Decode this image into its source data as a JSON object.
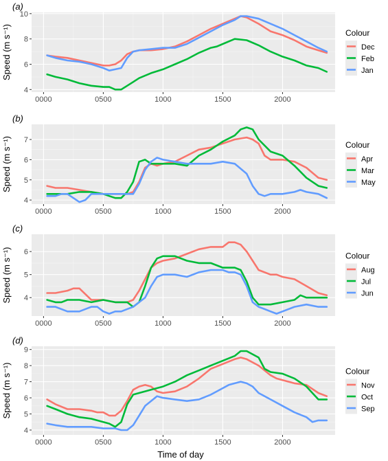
{
  "xlabel": "Time of day",
  "chart_data": [
    {
      "type": "line",
      "panel_label": "(a)",
      "ylabel": "Speed (m s⁻¹)",
      "xlim": [
        -100,
        2440
      ],
      "ylim": [
        3.8,
        10.1
      ],
      "xticks": [
        0,
        500,
        1000,
        1500,
        2000
      ],
      "xtick_labels": [
        "0000",
        "0500",
        "1000",
        "1500",
        "2000"
      ],
      "yticks": [
        4,
        6,
        8,
        10
      ],
      "ytick_labels": [
        "4",
        "6",
        "8",
        "10"
      ],
      "grid": true,
      "legend_title": "Colour",
      "legend_position": "right",
      "series": [
        {
          "name": "Dec",
          "color": "#F8766D",
          "x": [
            30,
            100,
            200,
            300,
            400,
            450,
            500,
            550,
            600,
            650,
            700,
            750,
            800,
            900,
            1000,
            1100,
            1200,
            1300,
            1400,
            1500,
            1600,
            1650,
            1700,
            1800,
            1900,
            2000,
            2100,
            2200,
            2300,
            2370
          ],
          "y": [
            6.7,
            6.6,
            6.5,
            6.3,
            6.1,
            6.0,
            5.9,
            5.9,
            6.0,
            6.3,
            6.8,
            7.0,
            7.1,
            7.1,
            7.2,
            7.4,
            7.8,
            8.3,
            8.8,
            9.2,
            9.6,
            9.8,
            9.7,
            9.2,
            8.6,
            8.3,
            7.9,
            7.4,
            7.1,
            6.9
          ]
        },
        {
          "name": "Feb",
          "color": "#00BA38",
          "x": [
            30,
            100,
            200,
            300,
            400,
            500,
            550,
            600,
            650,
            700,
            750,
            800,
            900,
            1000,
            1100,
            1200,
            1300,
            1400,
            1450,
            1500,
            1600,
            1700,
            1800,
            1900,
            2000,
            2100,
            2200,
            2300,
            2370
          ],
          "y": [
            5.2,
            5.0,
            4.8,
            4.5,
            4.3,
            4.2,
            4.2,
            4.0,
            4.0,
            4.3,
            4.6,
            4.9,
            5.3,
            5.6,
            6.0,
            6.4,
            6.9,
            7.3,
            7.4,
            7.6,
            8.0,
            7.9,
            7.5,
            7.0,
            6.6,
            6.3,
            5.9,
            5.7,
            5.4
          ]
        },
        {
          "name": "Jan",
          "color": "#619CFF",
          "x": [
            30,
            100,
            200,
            300,
            400,
            500,
            550,
            600,
            650,
            700,
            750,
            800,
            900,
            1000,
            1100,
            1200,
            1300,
            1400,
            1500,
            1600,
            1650,
            1700,
            1800,
            1900,
            2000,
            2100,
            2200,
            2300,
            2370
          ],
          "y": [
            6.7,
            6.5,
            6.3,
            6.2,
            6.0,
            5.7,
            5.5,
            5.6,
            5.7,
            6.5,
            7.0,
            7.1,
            7.2,
            7.3,
            7.3,
            7.6,
            8.1,
            8.6,
            9.1,
            9.5,
            9.8,
            9.8,
            9.6,
            9.2,
            8.8,
            8.3,
            7.8,
            7.3,
            7.0
          ]
        }
      ]
    },
    {
      "type": "line",
      "panel_label": "(b)",
      "ylabel": "Speed (m s⁻¹)",
      "xlim": [
        -100,
        2440
      ],
      "ylim": [
        3.8,
        7.75
      ],
      "xticks": [
        0,
        500,
        1000,
        1500,
        2000
      ],
      "xtick_labels": [
        "0000",
        "0500",
        "1000",
        "1500",
        "2000"
      ],
      "yticks": [
        4,
        5,
        6,
        7
      ],
      "ytick_labels": [
        "4",
        "5",
        "6",
        "7"
      ],
      "grid": true,
      "legend_title": "Colour",
      "legend_position": "right",
      "series": [
        {
          "name": "Apr",
          "color": "#F8766D",
          "x": [
            30,
            100,
            200,
            300,
            400,
            500,
            600,
            700,
            750,
            800,
            850,
            900,
            950,
            1000,
            1100,
            1200,
            1300,
            1400,
            1500,
            1600,
            1700,
            1750,
            1800,
            1850,
            1900,
            2000,
            2100,
            2200,
            2300,
            2370
          ],
          "y": [
            4.7,
            4.6,
            4.6,
            4.5,
            4.4,
            4.3,
            4.3,
            4.3,
            4.4,
            4.9,
            5.6,
            5.8,
            5.7,
            5.8,
            5.9,
            6.2,
            6.5,
            6.6,
            6.8,
            7.0,
            7.1,
            7.0,
            6.8,
            6.2,
            6.0,
            6.0,
            5.9,
            5.6,
            5.1,
            5.0
          ]
        },
        {
          "name": "Mar",
          "color": "#00BA38",
          "x": [
            30,
            100,
            200,
            300,
            400,
            500,
            550,
            600,
            650,
            700,
            750,
            800,
            850,
            900,
            1000,
            1100,
            1200,
            1300,
            1400,
            1500,
            1600,
            1650,
            1700,
            1750,
            1800,
            1900,
            2000,
            2100,
            2200,
            2300,
            2370
          ],
          "y": [
            4.3,
            4.3,
            4.3,
            4.4,
            4.4,
            4.3,
            4.2,
            4.1,
            4.1,
            4.4,
            4.9,
            5.9,
            6.0,
            5.8,
            5.8,
            5.8,
            5.7,
            6.2,
            6.5,
            6.9,
            7.2,
            7.5,
            7.6,
            7.5,
            7.0,
            6.4,
            6.2,
            5.7,
            5.1,
            4.7,
            4.6
          ]
        },
        {
          "name": "May",
          "color": "#619CFF",
          "x": [
            30,
            100,
            150,
            200,
            250,
            300,
            350,
            400,
            500,
            600,
            650,
            700,
            750,
            800,
            850,
            900,
            950,
            1000,
            1100,
            1200,
            1300,
            1400,
            1500,
            1600,
            1700,
            1750,
            1800,
            1850,
            1900,
            2000,
            2100,
            2150,
            2200,
            2300,
            2370
          ],
          "y": [
            4.2,
            4.2,
            4.3,
            4.3,
            4.1,
            3.9,
            4.0,
            4.3,
            4.3,
            4.3,
            4.3,
            4.3,
            4.3,
            4.8,
            5.5,
            5.9,
            6.1,
            6.0,
            5.9,
            5.8,
            5.8,
            5.8,
            5.9,
            5.8,
            5.3,
            4.7,
            4.3,
            4.2,
            4.3,
            4.3,
            4.4,
            4.5,
            4.4,
            4.3,
            4.1
          ]
        }
      ]
    },
    {
      "type": "line",
      "panel_label": "(c)",
      "ylabel": "Speed (m s⁻¹)",
      "xlim": [
        -100,
        2440
      ],
      "ylim": [
        3.2,
        6.75
      ],
      "xticks": [
        0,
        500,
        1000,
        1500,
        2000
      ],
      "xtick_labels": [
        "0000",
        "0500",
        "1000",
        "1500",
        "2000"
      ],
      "yticks": [
        4,
        5,
        6
      ],
      "ytick_labels": [
        "4",
        "5",
        "6"
      ],
      "grid": true,
      "legend_title": "Colour",
      "legend_position": "right",
      "series": [
        {
          "name": "Aug",
          "color": "#F8766D",
          "x": [
            30,
            100,
            200,
            250,
            300,
            400,
            500,
            600,
            650,
            700,
            750,
            800,
            850,
            900,
            950,
            1000,
            1100,
            1200,
            1300,
            1400,
            1500,
            1550,
            1600,
            1650,
            1700,
            1750,
            1800,
            1900,
            1950,
            2000,
            2100,
            2200,
            2300,
            2370
          ],
          "y": [
            4.2,
            4.2,
            4.3,
            4.4,
            4.4,
            3.9,
            3.9,
            3.8,
            3.8,
            3.8,
            3.9,
            4.3,
            4.8,
            5.3,
            5.5,
            5.6,
            5.7,
            5.9,
            6.1,
            6.2,
            6.2,
            6.4,
            6.4,
            6.3,
            6.0,
            5.6,
            5.2,
            5.0,
            5.0,
            4.9,
            4.8,
            4.5,
            4.2,
            4.1
          ]
        },
        {
          "name": "Jul",
          "color": "#00BA38",
          "x": [
            30,
            100,
            150,
            200,
            300,
            400,
            500,
            600,
            700,
            750,
            800,
            850,
            900,
            950,
            1000,
            1050,
            1100,
            1200,
            1300,
            1400,
            1500,
            1600,
            1650,
            1700,
            1750,
            1800,
            1900,
            2000,
            2100,
            2150,
            2200,
            2300,
            2370
          ],
          "y": [
            3.9,
            3.8,
            3.8,
            3.9,
            3.9,
            3.8,
            3.9,
            3.8,
            3.8,
            3.6,
            3.8,
            4.5,
            5.3,
            5.7,
            5.8,
            5.8,
            5.8,
            5.6,
            5.5,
            5.5,
            5.3,
            5.3,
            5.2,
            4.7,
            4.0,
            3.7,
            3.7,
            3.8,
            3.9,
            4.1,
            4.0,
            4.0,
            4.0
          ]
        },
        {
          "name": "Jun",
          "color": "#619CFF",
          "x": [
            30,
            100,
            200,
            300,
            400,
            450,
            500,
            550,
            600,
            650,
            700,
            750,
            800,
            850,
            900,
            950,
            1000,
            1100,
            1200,
            1300,
            1400,
            1500,
            1550,
            1600,
            1650,
            1700,
            1750,
            1800,
            1850,
            1900,
            1950,
            2000,
            2100,
            2200,
            2300,
            2370
          ],
          "y": [
            3.6,
            3.6,
            3.4,
            3.4,
            3.6,
            3.6,
            3.4,
            3.3,
            3.4,
            3.4,
            3.5,
            3.6,
            3.8,
            4.0,
            4.5,
            4.9,
            5.0,
            5.0,
            4.9,
            5.1,
            5.2,
            5.2,
            5.1,
            5.1,
            5.0,
            4.5,
            3.8,
            3.6,
            3.5,
            3.4,
            3.3,
            3.4,
            3.6,
            3.7,
            3.6,
            3.6
          ]
        }
      ]
    },
    {
      "type": "line",
      "panel_label": "(d)",
      "ylabel": "Speed (m s⁻¹)",
      "xlim": [
        -100,
        2440
      ],
      "ylim": [
        3.7,
        9.2
      ],
      "xticks": [
        0,
        500,
        1000,
        1500,
        2000
      ],
      "xtick_labels": [
        "0000",
        "0500",
        "1000",
        "1500",
        "2000"
      ],
      "yticks": [
        4,
        5,
        6,
        7,
        8,
        9
      ],
      "ytick_labels": [
        "4",
        "5",
        "6",
        "7",
        "8",
        "9"
      ],
      "grid": true,
      "legend_title": "Colour",
      "legend_position": "right",
      "series": [
        {
          "name": "Nov",
          "color": "#F8766D",
          "x": [
            30,
            100,
            200,
            300,
            400,
            450,
            500,
            550,
            600,
            650,
            700,
            750,
            800,
            850,
            900,
            950,
            1000,
            1100,
            1200,
            1300,
            1400,
            1500,
            1600,
            1650,
            1700,
            1800,
            1900,
            1950,
            2000,
            2100,
            2200,
            2300,
            2370
          ],
          "y": [
            5.9,
            5.6,
            5.3,
            5.3,
            5.2,
            5.1,
            5.1,
            4.9,
            4.9,
            5.2,
            5.8,
            6.5,
            6.7,
            6.8,
            6.7,
            6.4,
            6.3,
            6.4,
            6.7,
            7.2,
            7.8,
            8.1,
            8.4,
            8.5,
            8.4,
            8.0,
            7.4,
            7.2,
            7.1,
            6.9,
            6.8,
            6.3,
            6.1
          ]
        },
        {
          "name": "Oct",
          "color": "#00BA38",
          "x": [
            30,
            100,
            200,
            300,
            400,
            500,
            550,
            600,
            650,
            700,
            750,
            800,
            900,
            1000,
            1100,
            1200,
            1300,
            1400,
            1500,
            1600,
            1650,
            1700,
            1800,
            1850,
            1900,
            2000,
            2100,
            2200,
            2300,
            2370
          ],
          "y": [
            5.5,
            5.3,
            5.0,
            4.8,
            4.7,
            4.5,
            4.4,
            4.2,
            4.5,
            5.6,
            6.2,
            6.3,
            6.5,
            6.7,
            7.0,
            7.4,
            7.7,
            8.0,
            8.3,
            8.6,
            8.9,
            8.9,
            8.5,
            7.8,
            7.6,
            7.5,
            7.2,
            6.7,
            5.9,
            5.9
          ]
        },
        {
          "name": "Sep",
          "color": "#619CFF",
          "x": [
            30,
            100,
            200,
            300,
            400,
            500,
            550,
            600,
            650,
            700,
            750,
            800,
            850,
            900,
            950,
            1000,
            1100,
            1200,
            1300,
            1400,
            1500,
            1550,
            1600,
            1650,
            1700,
            1750,
            1800,
            1900,
            2000,
            2100,
            2200,
            2250,
            2300,
            2370
          ],
          "y": [
            4.4,
            4.3,
            4.2,
            4.2,
            4.2,
            4.1,
            4.1,
            4.1,
            4.0,
            4.0,
            4.3,
            4.9,
            5.5,
            5.8,
            6.1,
            6.0,
            5.9,
            5.8,
            5.9,
            6.2,
            6.6,
            6.8,
            6.9,
            7.0,
            6.9,
            6.7,
            6.3,
            5.9,
            5.5,
            5.1,
            4.8,
            4.5,
            4.6,
            4.6
          ]
        }
      ]
    }
  ]
}
